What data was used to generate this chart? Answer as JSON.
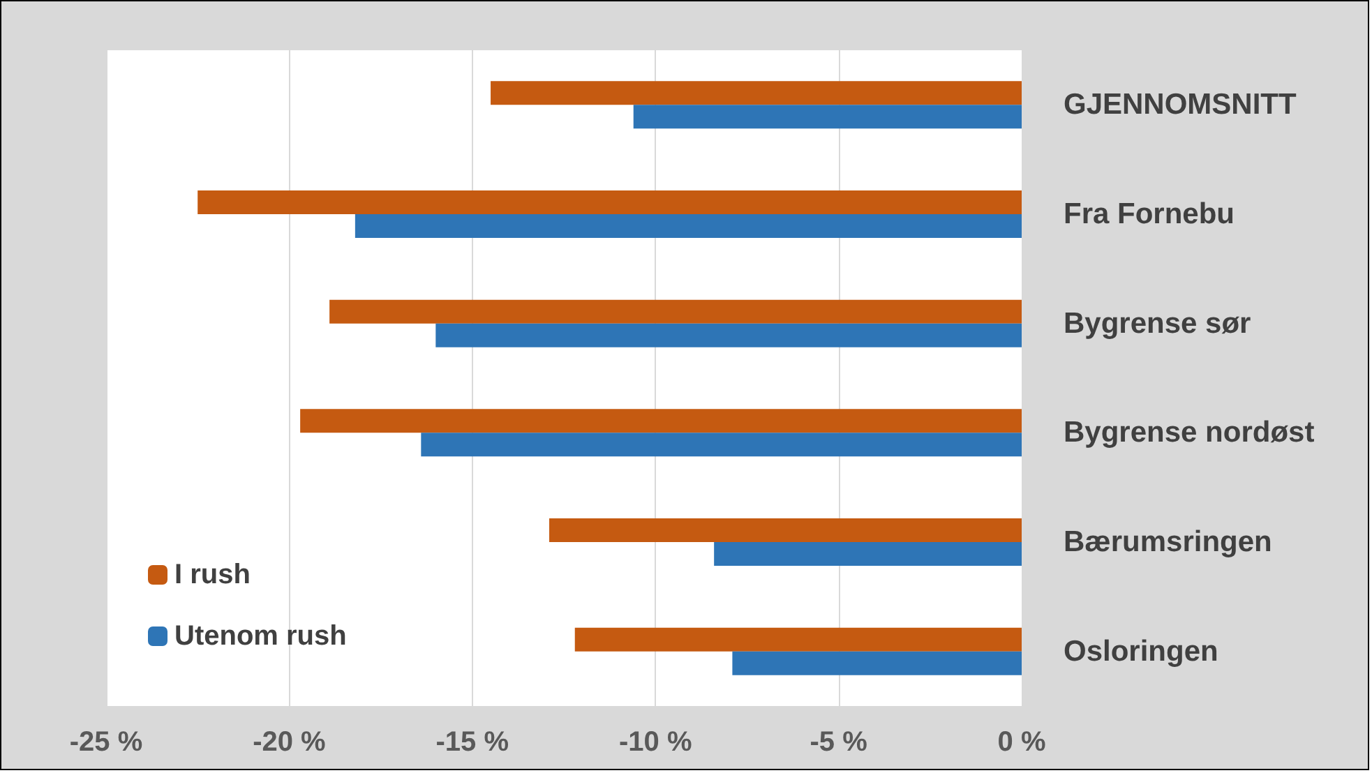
{
  "chart_data": {
    "type": "bar",
    "orientation": "horizontal",
    "categories": [
      "GJENNOMSNITT",
      "Fra Fornebu",
      "Bygrense sør",
      "Bygrense nordøst",
      "Bærumsringen",
      "Osloringen"
    ],
    "series": [
      {
        "name": "I rush",
        "color": "#c55a11",
        "values": [
          -14.5,
          -22.5,
          -18.9,
          -19.7,
          -12.9,
          -12.2
        ]
      },
      {
        "name": "Utenom rush",
        "color": "#2e75b6",
        "values": [
          -10.6,
          -18.2,
          -16.0,
          -16.4,
          -8.4,
          -7.9
        ]
      }
    ],
    "xlim": [
      -25,
      0
    ],
    "xticks": [
      {
        "value": -25,
        "label": "-25 %"
      },
      {
        "value": -20,
        "label": "-20 %"
      },
      {
        "value": -15,
        "label": "-15 %"
      },
      {
        "value": -10,
        "label": "-10 %"
      },
      {
        "value": -5,
        "label": "-5 %"
      },
      {
        "value": 0,
        "label": "0 %"
      }
    ],
    "grid": "x",
    "legend": "bottom left"
  }
}
